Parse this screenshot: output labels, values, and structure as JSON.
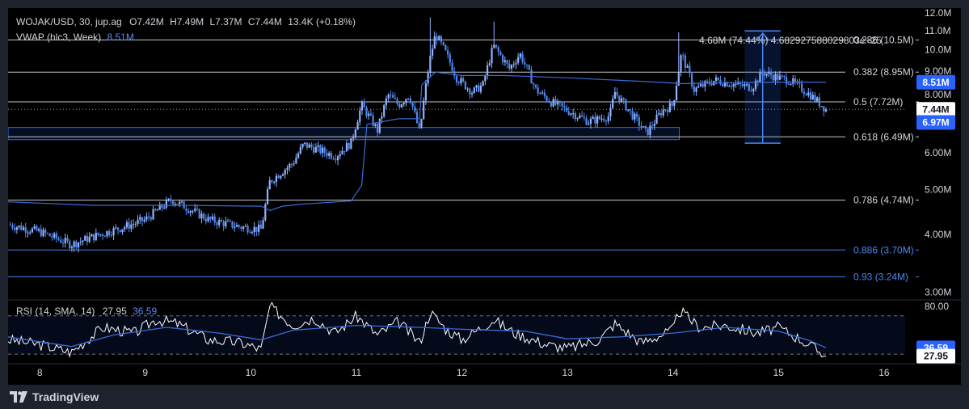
{
  "header": {
    "symbol": "WOJAK/USD, 30, jup.ag",
    "o_label": "O",
    "o_value": "7.42M",
    "h_label": "H",
    "h_value": "7.49M",
    "l_label": "L",
    "l_value": "7.37M",
    "c_label": "C",
    "c_value": "7.44M",
    "change": "13.4K (+0.18%)",
    "vwap_label": "VWAP (hlc3, Week)",
    "vwap_value": "8.51M"
  },
  "rsi_legend": {
    "label": "RSI (14, SMA, 14)",
    "rsi_value": "27.95",
    "sma_value": "36.59"
  },
  "measure": {
    "text": "4.68M (74.44%) 4.682927588029803e+25",
    "from": 6.29,
    "to": 10.98
  },
  "footer": {
    "brand": "TradingView"
  },
  "colors": {
    "candle": "#4f86ef",
    "candle_light": "#8fb3ff",
    "vwap": "#3a6bd9",
    "rsi": "#ffffff",
    "rsi_sma": "#3a6bd9",
    "fib_line": "#c8c8c8",
    "fib_low": "#4a7fe6",
    "price_badge": "#1e222d",
    "vwap_badge": "#2962ff"
  },
  "chart_data": {
    "type": "candlestick",
    "y_axis": {
      "scale": "log",
      "range": [
        2.9,
        12.3
      ],
      "ticks": [
        "12.0M",
        "11.0M",
        "10.0M",
        "9.00M",
        "8.00M",
        "7.00M",
        "6.00M",
        "5.00M",
        "4.00M",
        "3.00M"
      ],
      "tick_values": [
        12,
        11,
        10,
        9,
        8,
        7,
        6,
        5,
        4,
        3
      ]
    },
    "x_axis": {
      "ticks": [
        "8",
        "9",
        "10",
        "11",
        "12",
        "13",
        "14",
        "15",
        "16"
      ],
      "tick_values": [
        8,
        9,
        10,
        11,
        12,
        13,
        14,
        15,
        16
      ],
      "range": [
        7.7,
        16.2
      ]
    },
    "fib_levels": [
      {
        "level": "0.236",
        "value": 10.5,
        "label": "0.236 (10.5M)"
      },
      {
        "level": "0.382",
        "value": 8.95,
        "label": "0.382 (8.95M)"
      },
      {
        "level": "0.5",
        "value": 7.72,
        "label": "0.5 (7.72M)"
      },
      {
        "level": "0.618",
        "value": 6.49,
        "label": "0.618 (6.49M)"
      },
      {
        "level": "0.786",
        "value": 4.74,
        "label": "0.786 (4.74M)"
      },
      {
        "level": "0.886",
        "value": 3.7,
        "label": "0.886 (3.70M)"
      },
      {
        "level": "0.93",
        "value": 3.24,
        "label": "0.93 (3.24M)"
      }
    ],
    "badges": [
      {
        "value": 8.51,
        "label": "8.51M",
        "kind": "vwap"
      },
      {
        "value": 7.44,
        "label": "7.44M",
        "kind": "price"
      },
      {
        "value": 6.97,
        "label": "6.97M",
        "kind": "vwap"
      }
    ],
    "last_price": 7.44,
    "zone": {
      "top": 6.8,
      "bottom": 6.4,
      "x_start": 7.7,
      "x_end": 14.06
    },
    "price_path": [
      [
        7.7,
        4.2
      ],
      [
        8.0,
        4.05
      ],
      [
        8.3,
        3.8
      ],
      [
        8.5,
        3.95
      ],
      [
        8.8,
        4.15
      ],
      [
        9.0,
        4.3
      ],
      [
        9.25,
        4.75
      ],
      [
        9.6,
        4.3
      ],
      [
        9.9,
        4.15
      ],
      [
        10.1,
        4.1
      ],
      [
        10.18,
        5.2
      ],
      [
        10.4,
        5.7
      ],
      [
        10.5,
        6.25
      ],
      [
        10.8,
        5.9
      ],
      [
        10.95,
        6.3
      ],
      [
        11.05,
        7.6
      ],
      [
        11.2,
        6.7
      ],
      [
        11.3,
        8.0
      ],
      [
        11.4,
        7.6
      ],
      [
        11.5,
        8.0
      ],
      [
        11.6,
        6.6
      ],
      [
        11.7,
        9.6
      ],
      [
        11.75,
        10.8
      ],
      [
        11.85,
        9.8
      ],
      [
        11.95,
        8.7
      ],
      [
        12.1,
        8.1
      ],
      [
        12.2,
        8.4
      ],
      [
        12.3,
        10.2
      ],
      [
        12.45,
        9.1
      ],
      [
        12.55,
        9.8
      ],
      [
        12.7,
        8.2
      ],
      [
        12.85,
        7.7
      ],
      [
        13.0,
        7.4
      ],
      [
        13.2,
        7.0
      ],
      [
        13.4,
        7.2
      ],
      [
        13.45,
        8.1
      ],
      [
        13.6,
        7.3
      ],
      [
        13.75,
        6.6
      ],
      [
        13.9,
        7.4
      ],
      [
        14.0,
        7.6
      ],
      [
        14.05,
        8.9
      ],
      [
        14.08,
        9.8
      ],
      [
        14.2,
        8.2
      ],
      [
        14.4,
        8.6
      ],
      [
        14.6,
        8.4
      ],
      [
        14.75,
        8.3
      ],
      [
        14.85,
        8.95
      ],
      [
        15.0,
        8.7
      ],
      [
        15.1,
        8.6
      ],
      [
        15.3,
        8.0
      ],
      [
        15.45,
        7.44
      ]
    ],
    "wick_spikes": [
      {
        "x": 11.7,
        "high": 11.75
      },
      {
        "x": 12.3,
        "high": 11.5
      },
      {
        "x": 14.06,
        "high": 10.9
      }
    ],
    "vwap_path": [
      [
        7.7,
        4.7
      ],
      [
        8.5,
        4.62
      ],
      [
        9.3,
        4.62
      ],
      [
        10.1,
        4.6
      ],
      [
        10.18,
        4.5
      ],
      [
        10.3,
        4.6
      ],
      [
        10.5,
        4.65
      ],
      [
        10.95,
        4.72
      ],
      [
        11.05,
        5.1
      ],
      [
        11.1,
        6.9
      ],
      [
        11.4,
        7.1
      ],
      [
        11.6,
        7.1
      ],
      [
        11.62,
        8.4
      ],
      [
        11.75,
        8.95
      ],
      [
        12.0,
        8.8
      ],
      [
        12.4,
        8.8
      ],
      [
        13.0,
        8.7
      ],
      [
        13.7,
        8.55
      ],
      [
        14.1,
        8.45
      ],
      [
        14.6,
        8.5
      ],
      [
        15.2,
        8.52
      ],
      [
        15.45,
        8.51
      ]
    ],
    "rsi": {
      "range": [
        20,
        85
      ],
      "ticks": [
        "80.00"
      ],
      "tick_values": [
        80
      ],
      "band_upper": 70,
      "band_lower": 30,
      "last_rsi": 27.95,
      "last_sma": 36.59,
      "rsi_path": [
        [
          7.7,
          45
        ],
        [
          8.0,
          40
        ],
        [
          8.3,
          32
        ],
        [
          8.6,
          58
        ],
        [
          8.9,
          52
        ],
        [
          9.1,
          66
        ],
        [
          9.3,
          62
        ],
        [
          9.6,
          45
        ],
        [
          9.9,
          42
        ],
        [
          10.1,
          35
        ],
        [
          10.18,
          80
        ],
        [
          10.4,
          60
        ],
        [
          10.6,
          68
        ],
        [
          10.8,
          52
        ],
        [
          11.0,
          70
        ],
        [
          11.2,
          50
        ],
        [
          11.4,
          64
        ],
        [
          11.6,
          42
        ],
        [
          11.7,
          74
        ],
        [
          11.85,
          56
        ],
        [
          12.0,
          45
        ],
        [
          12.3,
          66
        ],
        [
          12.5,
          52
        ],
        [
          12.8,
          40
        ],
        [
          13.0,
          36
        ],
        [
          13.3,
          45
        ],
        [
          13.45,
          62
        ],
        [
          13.7,
          42
        ],
        [
          14.0,
          55
        ],
        [
          14.06,
          76
        ],
        [
          14.25,
          58
        ],
        [
          14.5,
          60
        ],
        [
          14.8,
          52
        ],
        [
          15.0,
          58
        ],
        [
          15.2,
          46
        ],
        [
          15.45,
          27.95
        ]
      ],
      "sma_path": [
        [
          7.7,
          48
        ],
        [
          8.3,
          38
        ],
        [
          8.7,
          50
        ],
        [
          9.2,
          58
        ],
        [
          9.7,
          52
        ],
        [
          10.1,
          45
        ],
        [
          10.4,
          55
        ],
        [
          11.0,
          60
        ],
        [
          11.6,
          58
        ],
        [
          12.0,
          56
        ],
        [
          12.6,
          54
        ],
        [
          13.0,
          46
        ],
        [
          13.5,
          48
        ],
        [
          14.0,
          52
        ],
        [
          14.5,
          58
        ],
        [
          15.0,
          54
        ],
        [
          15.3,
          44
        ],
        [
          15.45,
          36.59
        ]
      ]
    }
  }
}
